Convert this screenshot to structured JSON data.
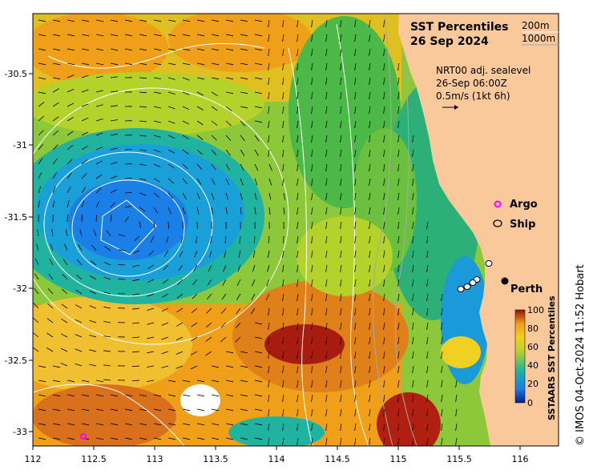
{
  "title": "SST Percentiles",
  "date": "26 Sep 2024",
  "contour_legend": {
    "a": "200m",
    "b": "1000m"
  },
  "current_info": {
    "line1": "NRT00 adj. sealevel",
    "line2": "26-Sep 06:00Z",
    "line3": "0.5m/s (1kt 6h)"
  },
  "markers": {
    "argo": "Argo",
    "ship": "Ship",
    "city": "Perth"
  },
  "colorbar": {
    "title": "SSTAARS SST Percentiles",
    "ticks": [
      "100",
      "80",
      "60",
      "40",
      "20",
      "0"
    ]
  },
  "credit": "© IMOS 04-Oct-2024 11:52 Hobart",
  "axes": {
    "x_ticks": [
      "112",
      "112.5",
      "113",
      "113.5",
      "114",
      "114.5",
      "115",
      "115.5",
      "116"
    ],
    "y_ticks": [
      "-30.5",
      "-31",
      "-31.5",
      "-32",
      "-32.5",
      "-33"
    ]
  },
  "colors": {
    "land": "#f9c89b",
    "argo": "#ff00ff",
    "p0": "#0a1e8c",
    "p20": "#1a7fe6",
    "p40": "#20b4a0",
    "p60": "#b4d22a",
    "p80": "#f0a018",
    "p100": "#9a1010"
  }
}
